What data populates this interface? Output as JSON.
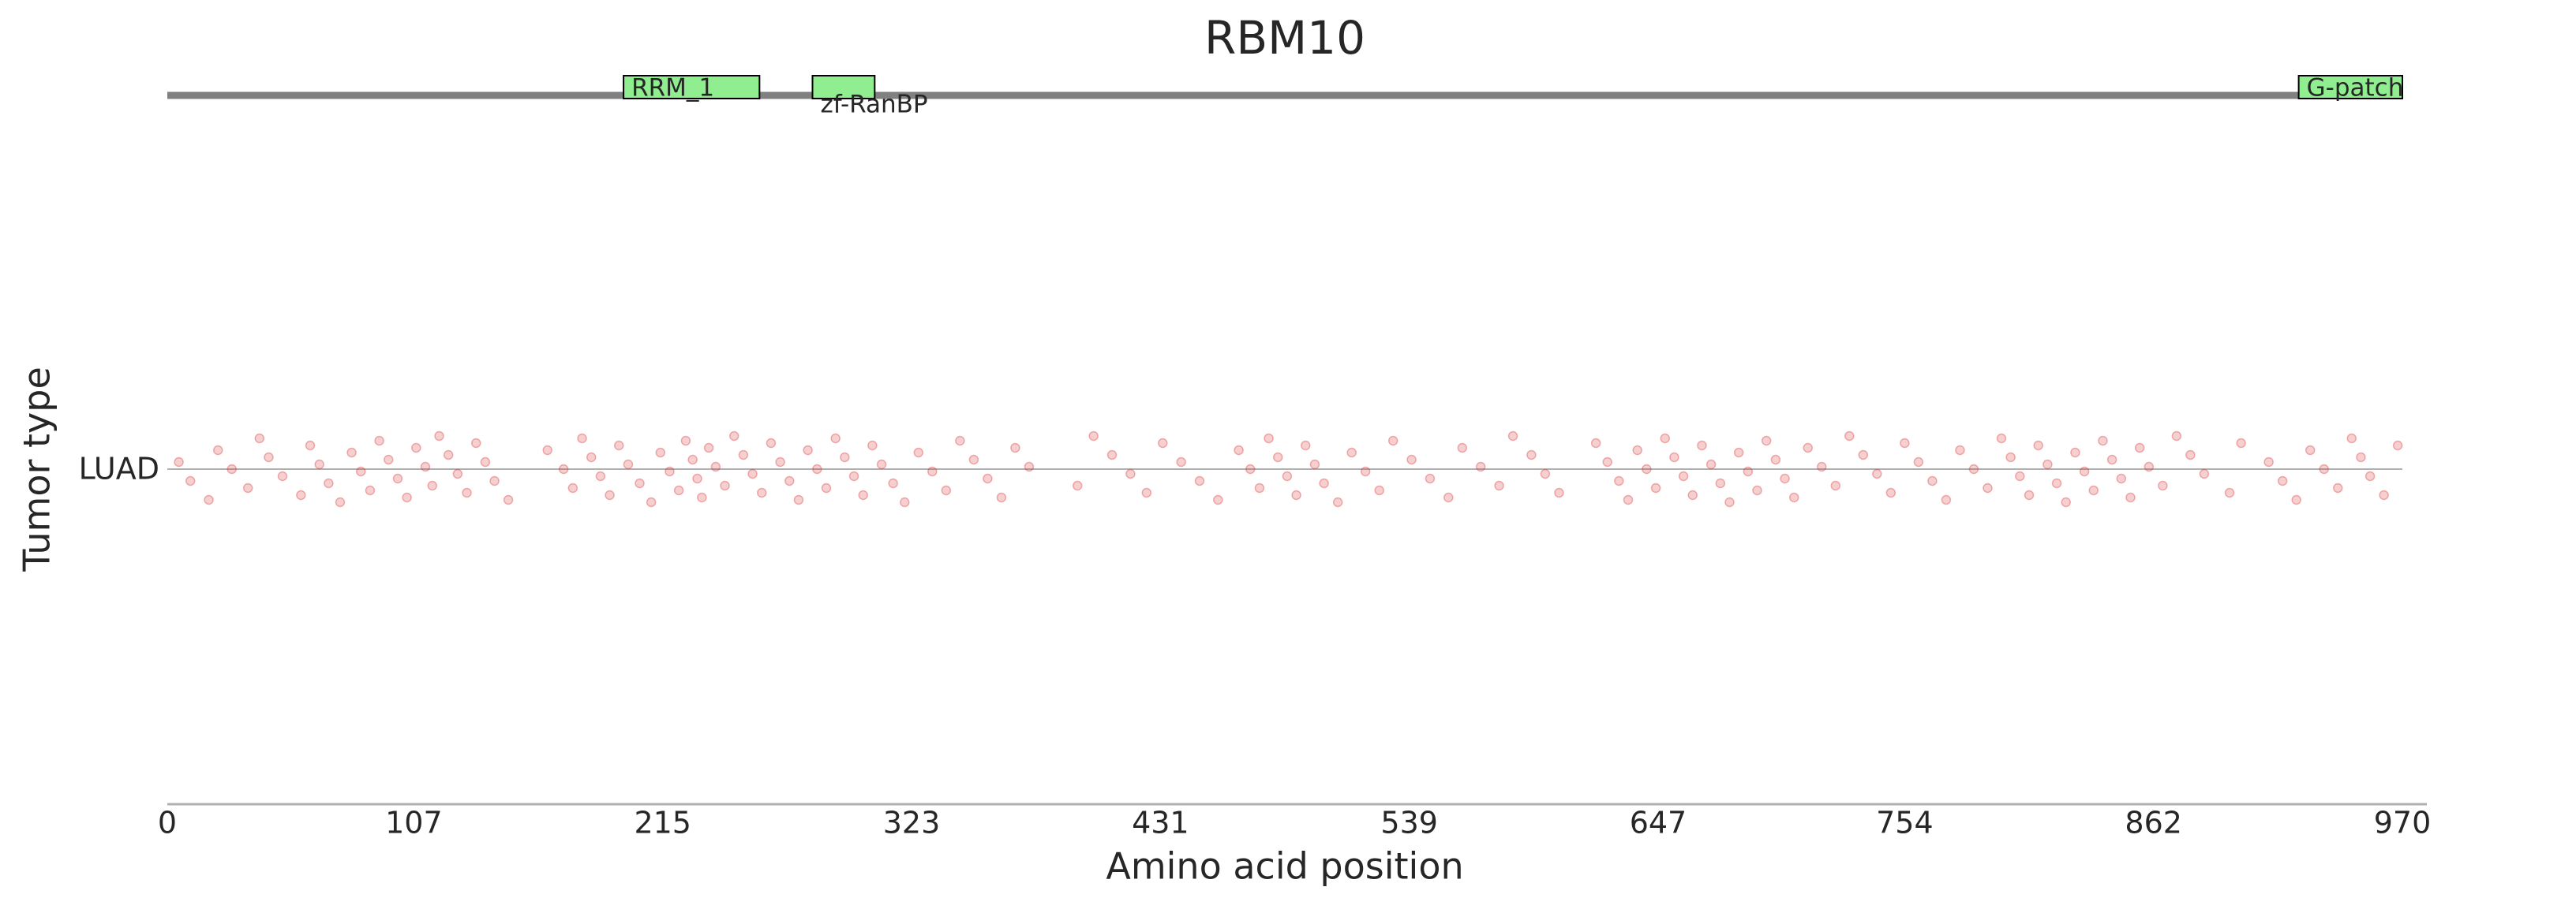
{
  "chart_data": {
    "type": "strip",
    "title": "RBM10",
    "xlabel": "Amino acid position",
    "ylabel": "Tumor type",
    "categories": [
      "LUAD"
    ],
    "color": "#d62728",
    "protein_color": "#808080",
    "domain_color": "#90ee90",
    "xlim": [
      0,
      970
    ],
    "xticks": [
      0,
      107,
      215,
      323,
      431,
      539,
      647,
      754,
      862,
      970
    ],
    "domains": [
      {
        "name": "RRM_1",
        "start": 198,
        "end": 257
      },
      {
        "name": "zf-RanBP",
        "start": 280,
        "end": 307
      },
      {
        "name": "G-patch",
        "start": 925,
        "end": 970
      }
    ],
    "x": [
      5,
      10,
      18,
      22,
      28,
      35,
      40,
      44,
      50,
      58,
      62,
      66,
      70,
      75,
      80,
      84,
      88,
      92,
      96,
      100,
      104,
      108,
      112,
      115,
      118,
      122,
      126,
      130,
      134,
      138,
      142,
      148,
      165,
      172,
      176,
      180,
      184,
      188,
      192,
      196,
      200,
      205,
      210,
      214,
      218,
      222,
      225,
      228,
      230,
      232,
      235,
      238,
      242,
      246,
      250,
      254,
      258,
      262,
      266,
      270,
      274,
      278,
      282,
      286,
      290,
      294,
      298,
      302,
      306,
      310,
      315,
      320,
      326,
      332,
      338,
      344,
      350,
      356,
      362,
      368,
      374,
      395,
      402,
      410,
      418,
      425,
      432,
      440,
      448,
      456,
      465,
      470,
      474,
      478,
      482,
      486,
      490,
      494,
      498,
      502,
      508,
      514,
      520,
      526,
      532,
      540,
      548,
      556,
      562,
      570,
      578,
      584,
      592,
      598,
      604,
      620,
      625,
      630,
      634,
      638,
      642,
      646,
      650,
      654,
      658,
      662,
      666,
      670,
      674,
      678,
      682,
      686,
      690,
      694,
      698,
      702,
      706,
      712,
      718,
      724,
      730,
      736,
      742,
      748,
      754,
      760,
      766,
      772,
      778,
      784,
      790,
      796,
      800,
      804,
      808,
      812,
      816,
      820,
      824,
      828,
      832,
      836,
      840,
      844,
      848,
      852,
      856,
      860,
      866,
      872,
      878,
      884,
      895,
      900,
      912,
      918,
      924,
      930,
      936,
      942,
      948,
      952,
      956,
      962,
      968
    ]
  }
}
